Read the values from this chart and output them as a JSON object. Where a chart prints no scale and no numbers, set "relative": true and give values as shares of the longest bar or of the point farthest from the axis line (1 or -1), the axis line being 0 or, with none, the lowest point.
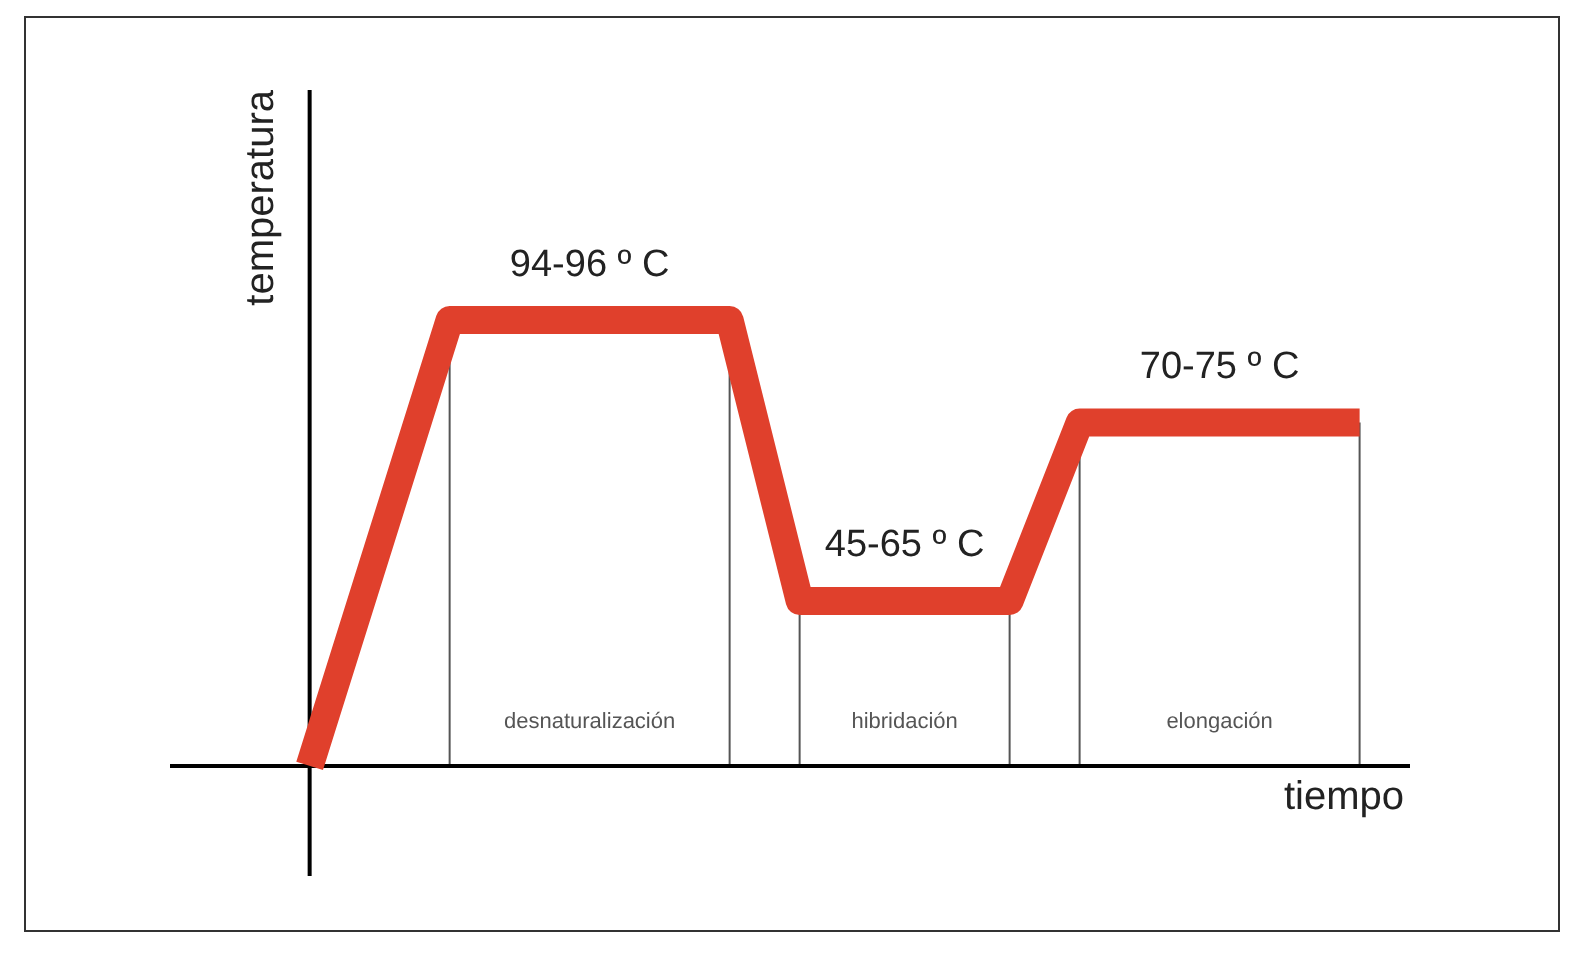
{
  "chart_data": {
    "type": "line",
    "relative": true,
    "xlabel": "tiempo",
    "ylabel": "temperatura",
    "categories": [
      null,
      null,
      null,
      null,
      null,
      null,
      null,
      null,
      null,
      null,
      null,
      null,
      null,
      null,
      null,
      null
    ],
    "series": [
      {
        "color": "#e0402c",
        "values": [
          0,
          0.5,
          1,
          1,
          1,
          1,
          1,
          0.37,
          0.37,
          0.37,
          0.37,
          0.77,
          0.77,
          0.77,
          0.77,
          0.77
        ]
      }
    ],
    "annotations": [
      {
        "text": "94-96 º C",
        "y": 1
      },
      {
        "text": "45-65 º C",
        "y": 0.37
      },
      {
        "text": "70-75 º C",
        "y": 0.77
      },
      "desnaturalización",
      "hibridación",
      "elongación"
    ],
    "marker": "none",
    "legend": false,
    "grid": "x"
  }
}
